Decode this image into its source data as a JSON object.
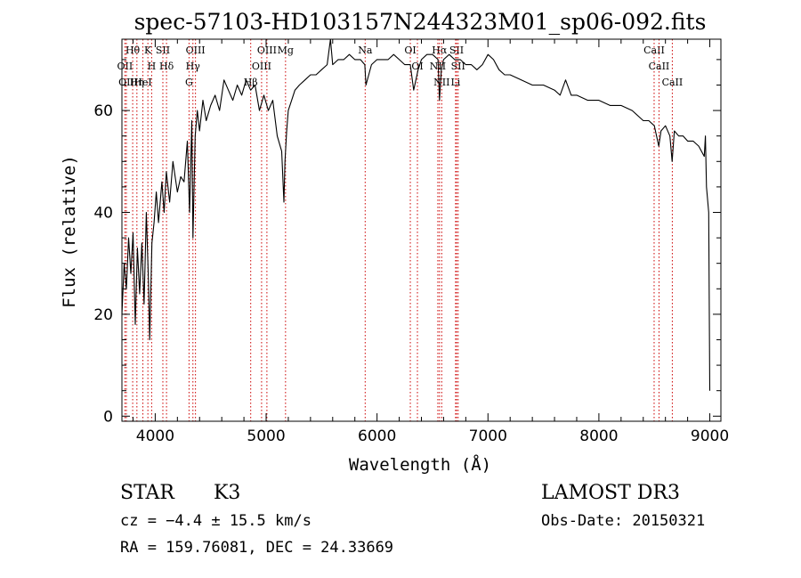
{
  "chart_data": {
    "type": "line",
    "title": "spec-57103-HD103157N244323M01_sp06-092.fits",
    "xlabel": "Wavelength (Å)",
    "ylabel": "Flux (relative)",
    "xlim": [
      3700,
      9100
    ],
    "ylim": [
      -1,
      74
    ],
    "xticks": [
      4000,
      5000,
      6000,
      7000,
      8000,
      9000
    ],
    "yticks": [
      0,
      20,
      40,
      60
    ],
    "grid": false,
    "legend": "none",
    "series": [
      {
        "name": "flux",
        "color": "#000000",
        "x": [
          3700,
          3720,
          3740,
          3760,
          3780,
          3800,
          3820,
          3840,
          3860,
          3880,
          3900,
          3920,
          3940,
          3950,
          3970,
          3990,
          4010,
          4030,
          4060,
          4080,
          4100,
          4130,
          4160,
          4200,
          4230,
          4260,
          4290,
          4310,
          4330,
          4340,
          4360,
          4380,
          4400,
          4430,
          4460,
          4500,
          4540,
          4580,
          4620,
          4660,
          4700,
          4740,
          4780,
          4820,
          4860,
          4900,
          4940,
          4980,
          5020,
          5060,
          5100,
          5140,
          5160,
          5170,
          5185,
          5200,
          5230,
          5260,
          5300,
          5350,
          5400,
          5450,
          5500,
          5550,
          5580,
          5600,
          5650,
          5700,
          5750,
          5800,
          5850,
          5890,
          5900,
          5950,
          6000,
          6050,
          6100,
          6150,
          6200,
          6250,
          6300,
          6330,
          6370,
          6400,
          6450,
          6500,
          6550,
          6563,
          6580,
          6600,
          6650,
          6700,
          6750,
          6800,
          6850,
          6900,
          6950,
          7000,
          7050,
          7100,
          7150,
          7200,
          7300,
          7400,
          7500,
          7600,
          7650,
          7700,
          7750,
          7800,
          7900,
          8000,
          8100,
          8200,
          8300,
          8400,
          8450,
          8500,
          8540,
          8560,
          8600,
          8640,
          8660,
          8680,
          8720,
          8760,
          8800,
          8850,
          8900,
          8950,
          8960,
          8970,
          8990,
          9000
        ],
        "y": [
          20,
          30,
          25,
          35,
          28,
          36,
          18,
          33,
          24,
          34,
          22,
          40,
          26,
          15,
          34,
          38,
          44,
          38,
          46,
          40,
          48,
          42,
          50,
          44,
          47,
          46,
          54,
          40,
          58,
          35,
          55,
          60,
          56,
          62,
          58,
          61,
          63,
          60,
          66,
          64,
          62,
          65,
          63,
          66,
          64,
          65,
          60,
          63,
          60,
          62,
          55,
          52,
          42,
          50,
          56,
          60,
          62,
          64,
          65,
          66,
          67,
          67,
          68,
          69,
          74,
          69,
          70,
          70,
          71,
          70,
          70,
          69,
          65,
          69,
          70,
          70,
          70,
          71,
          70,
          69,
          69,
          64,
          68,
          70,
          71,
          71,
          70,
          62,
          68,
          70,
          71,
          70,
          70,
          69,
          69,
          68,
          69,
          71,
          70,
          68,
          67,
          67,
          66,
          65,
          65,
          64,
          63,
          66,
          63,
          63,
          62,
          62,
          61,
          61,
          60,
          58,
          58,
          57,
          53,
          56,
          57,
          55,
          50,
          56,
          55,
          55,
          54,
          54,
          53,
          51,
          55,
          45,
          40,
          5
        ]
      }
    ],
    "line_annotations": [
      {
        "label": "Hθ",
        "x": 3797
      },
      {
        "label": "OII",
        "x": 3727
      },
      {
        "label": "OII",
        "x": 3740
      },
      {
        "label": "K",
        "x": 3934
      },
      {
        "label": "H",
        "x": 3968
      },
      {
        "label": "HeI",
        "x": 3889
      },
      {
        "label": "Hη",
        "x": 3835
      },
      {
        "label": "SII",
        "x": 4069
      },
      {
        "label": "Hδ",
        "x": 4102
      },
      {
        "label": "OIII",
        "x": 4363
      },
      {
        "label": "Hγ",
        "x": 4340
      },
      {
        "label": "G",
        "x": 4305
      },
      {
        "label": "OIII",
        "x": 5007
      },
      {
        "label": "OIII",
        "x": 4959
      },
      {
        "label": "Hβ",
        "x": 4861
      },
      {
        "label": "Mg",
        "x": 5175
      },
      {
        "label": "Na",
        "x": 5893
      },
      {
        "label": "OI",
        "x": 6300
      },
      {
        "label": "OI",
        "x": 6364
      },
      {
        "label": "Hα",
        "x": 6563
      },
      {
        "label": "NII",
        "x": 6548
      },
      {
        "label": "NII",
        "x": 6583
      },
      {
        "label": "SII",
        "x": 6717
      },
      {
        "label": "SII",
        "x": 6731
      },
      {
        "label": "Li",
        "x": 6708
      },
      {
        "label": "CaII",
        "x": 8498
      },
      {
        "label": "CaII",
        "x": 8542
      },
      {
        "label": "CaII",
        "x": 8662
      }
    ],
    "line_color": "#cc0000"
  },
  "footer": {
    "object_type": "STAR",
    "subclass": "K3",
    "survey": "LAMOST DR3",
    "cz": "cz = −4.4 ± 15.5 km/s",
    "obs_date": "Obs-Date: 20150321",
    "coords": "RA = 159.76081, DEC =  24.33669"
  }
}
